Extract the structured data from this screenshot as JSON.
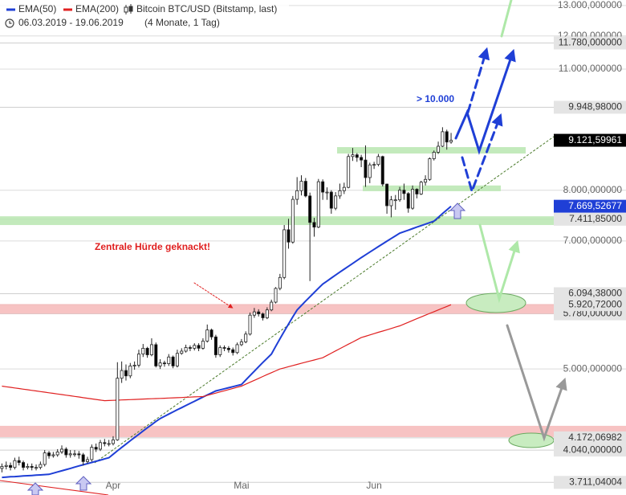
{
  "chart_data": {
    "type": "candlestick",
    "title": "Bitcoin BTC/USD (Bitstamp, last)",
    "subtitle": "06.03.2019 - 19.06.2019",
    "period": "(4 Monate, 1 Tag)",
    "log_scale": true,
    "grid": true,
    "color_up": "#ffffff",
    "color_down": "#000000",
    "categories": [
      null,
      null,
      null,
      null,
      null,
      null,
      null,
      null,
      null,
      null,
      null,
      null,
      null,
      null,
      null,
      null,
      null,
      null,
      null,
      null,
      null,
      null,
      null,
      null,
      null,
      null,
      "Apr",
      null,
      null,
      null,
      null,
      null,
      null,
      null,
      null,
      null,
      null,
      null,
      null,
      null,
      null,
      null,
      null,
      null,
      null,
      null,
      null,
      null,
      null,
      null,
      null,
      null,
      null,
      null,
      null,
      null,
      "Mai",
      null,
      null,
      null,
      null,
      null,
      null,
      null,
      null,
      null,
      null,
      null,
      null,
      null,
      null,
      null,
      null,
      null,
      null,
      null,
      null,
      null,
      null,
      null,
      null,
      null,
      null,
      null,
      null,
      null,
      null,
      "Jun",
      null,
      null,
      null,
      null,
      null,
      null,
      null,
      null,
      null,
      null,
      null,
      null,
      null,
      null,
      null,
      null,
      null,
      null
    ],
    "open": [
      3850,
      3870,
      3880,
      3860,
      3930,
      3910,
      3860,
      3870,
      3860,
      3860,
      3890,
      4010,
      3980,
      3990,
      4020,
      4050,
      3990,
      4000,
      4000,
      3990,
      3920,
      3940,
      4070,
      4050,
      4120,
      4110,
      4110,
      4150,
      4880,
      4980,
      4910,
      5040,
      5050,
      5200,
      5280,
      5190,
      5330,
      5040,
      5080,
      5070,
      5160,
      5040,
      5210,
      5240,
      5290,
      5280,
      5320,
      5280,
      5380,
      5540,
      5440,
      5190,
      5290,
      5280,
      5260,
      5220,
      5330,
      5370,
      5480,
      5760,
      5810,
      5780,
      5720,
      5840,
      5960,
      6180,
      6360,
      7210,
      6980,
      7810,
      7990,
      8190,
      7880,
      7350,
      7260,
      8180,
      7960,
      7960,
      7630,
      7880,
      7990,
      8060,
      8740,
      8780,
      8720,
      8660,
      8270,
      8550,
      8560,
      8740,
      8130,
      7680,
      7800,
      7800,
      8000,
      7930,
      7630,
      8020,
      7920,
      8170,
      8230,
      8690,
      8840,
      8980,
      9330,
      9080
    ],
    "high": [
      3900,
      3920,
      3910,
      3960,
      3970,
      3930,
      3900,
      3900,
      3890,
      3920,
      4040,
      4030,
      4020,
      4050,
      4090,
      4070,
      4040,
      4040,
      4030,
      4010,
      3970,
      4100,
      4110,
      4150,
      4160,
      4150,
      4190,
      5090,
      5100,
      5060,
      5080,
      5100,
      5260,
      5340,
      5300,
      5420,
      5360,
      5130,
      5110,
      5200,
      5180,
      5260,
      5280,
      5330,
      5320,
      5350,
      5350,
      5420,
      5620,
      5560,
      5470,
      5320,
      5320,
      5310,
      5290,
      5360,
      5410,
      5520,
      5800,
      5870,
      5850,
      5800,
      5880,
      6000,
      6200,
      6420,
      7300,
      7420,
      7880,
      8280,
      8320,
      8260,
      7950,
      7440,
      8240,
      8230,
      8060,
      8000,
      7960,
      8140,
      8160,
      8800,
      8940,
      8820,
      8780,
      9000,
      8600,
      8620,
      8800,
      8760,
      8140,
      7880,
      7900,
      8070,
      8140,
      7960,
      8100,
      8040,
      8200,
      8320,
      8720,
      8880,
      9090,
      9440,
      9380,
      9300
    ],
    "low": [
      3810,
      3840,
      3830,
      3840,
      3880,
      3830,
      3840,
      3830,
      3830,
      3840,
      3870,
      3950,
      3960,
      3970,
      4000,
      3960,
      3960,
      3970,
      3950,
      3880,
      3900,
      3920,
      4020,
      4030,
      4080,
      4080,
      4090,
      4140,
      4820,
      4850,
      4880,
      4990,
      5020,
      5160,
      5150,
      5170,
      5020,
      5000,
      5030,
      5040,
      5010,
      5020,
      5190,
      5220,
      5240,
      5250,
      5240,
      5260,
      5360,
      5400,
      5150,
      5160,
      5240,
      5220,
      5180,
      5200,
      5310,
      5350,
      5460,
      5720,
      5740,
      5680,
      5700,
      5820,
      5940,
      6150,
      6330,
      6860,
      6950,
      7700,
      7890,
      7850,
      6300,
      7080,
      7240,
      7800,
      7800,
      7520,
      7590,
      7820,
      7920,
      8040,
      8640,
      8620,
      8500,
      8070,
      8150,
      8460,
      8520,
      8080,
      7520,
      7450,
      7600,
      7760,
      7800,
      7540,
      7600,
      7830,
      7900,
      8100,
      8200,
      8650,
      8800,
      8960,
      8900,
      9040
    ],
    "close": [
      3870,
      3880,
      3860,
      3930,
      3910,
      3860,
      3870,
      3860,
      3860,
      3890,
      4010,
      3980,
      3990,
      4020,
      4050,
      3990,
      4000,
      4000,
      3990,
      3920,
      3940,
      4070,
      4050,
      4120,
      4110,
      4110,
      4150,
      4880,
      4980,
      4910,
      5040,
      5050,
      5200,
      5280,
      5190,
      5330,
      5040,
      5080,
      5070,
      5160,
      5040,
      5210,
      5240,
      5290,
      5280,
      5320,
      5280,
      5380,
      5540,
      5440,
      5190,
      5290,
      5280,
      5260,
      5220,
      5330,
      5370,
      5480,
      5760,
      5810,
      5780,
      5720,
      5840,
      5960,
      6180,
      6360,
      7210,
      6980,
      7810,
      7990,
      8190,
      7880,
      7350,
      7260,
      8180,
      7960,
      7960,
      7630,
      7880,
      7990,
      8060,
      8740,
      8780,
      8720,
      8660,
      8270,
      8550,
      8560,
      8740,
      8130,
      7680,
      7800,
      7800,
      8000,
      7930,
      7630,
      8020,
      7920,
      8170,
      8230,
      8690,
      8840,
      8980,
      9330,
      9080,
      9121.59961
    ],
    "series": [
      {
        "name": "EMA(50)",
        "color": "#1f3fd6",
        "values": [
          3760,
          3763,
          3766,
          3768,
          3771,
          3774,
          3777,
          3779,
          3782,
          3785,
          3788,
          3790,
          3802,
          3814,
          3826,
          3838,
          3850,
          3863,
          3875,
          3887,
          3899,
          3911,
          3923,
          3935,
          3947,
          3960,
          3996,
          4032,
          4068,
          4104,
          4140,
          4176,
          4212,
          4248,
          4284,
          4320,
          4356,
          4390,
          4415,
          4441,
          4466,
          4492,
          4517,
          4543,
          4568,
          4593,
          4619,
          4644,
          4670,
          4695,
          4720,
          4733,
          4747,
          4760,
          4773,
          4787,
          4800,
          4857,
          4914,
          4971,
          5029,
          5086,
          5143,
          5200,
          5307,
          5413,
          5520,
          5627,
          5733,
          5840,
          5908,
          5977,
          6045,
          6113,
          6182,
          6250,
          6300,
          6350,
          6400,
          6450,
          6500,
          6550,
          6600,
          6650,
          6700,
          6749,
          6799,
          6848,
          6898,
          6947,
          6997,
          7046,
          7096,
          7145,
          7174,
          7203,
          7231,
          7260,
          7289,
          7318,
          7346,
          7375,
          7449,
          7523,
          7596,
          7669.52677
        ]
      },
      {
        "name": "EMA(200)",
        "color": "#e02020",
        "values": [
          4780,
          4772,
          4765,
          4757,
          4750,
          4742,
          4735,
          4727,
          4720,
          4712,
          4705,
          4697,
          4690,
          4682,
          4675,
          4667,
          4660,
          4652,
          4645,
          4637,
          4630,
          4622,
          4615,
          4607,
          4600,
          4602,
          4604,
          4606,
          4609,
          4611,
          4613,
          4615,
          4617,
          4620,
          4622,
          4624,
          4626,
          4628,
          4630,
          4633,
          4635,
          4637,
          4639,
          4641,
          4643,
          4646,
          4648,
          4650,
          4664,
          4679,
          4693,
          4708,
          4722,
          4737,
          4751,
          4766,
          4780,
          4804,
          4829,
          4853,
          4878,
          4902,
          4927,
          4951,
          4976,
          5000,
          5015,
          5030,
          5045,
          5060,
          5075,
          5090,
          5105,
          5120,
          5135,
          5150,
          5181,
          5212,
          5243,
          5274,
          5306,
          5337,
          5368,
          5399,
          5430,
          5449,
          5468,
          5487,
          5506,
          5524,
          5543,
          5562,
          5581,
          5600,
          5627,
          5653,
          5680,
          5707,
          5733,
          5760,
          5787,
          5813,
          5840,
          5867,
          5893,
          5920.72
        ]
      }
    ],
    "ylim": [
      3590,
      13190
    ],
    "yticks": [
      {
        "value": 13000,
        "label": "13.000,000000"
      },
      {
        "value": 12000,
        "label": "12.000,000000"
      },
      {
        "value": 11000,
        "label": "11.000,000000"
      },
      {
        "value": 8000,
        "label": "8.000,000000"
      },
      {
        "value": 7000,
        "label": "7.000,000000"
      },
      {
        "value": 5000,
        "label": "5.000,000000"
      }
    ],
    "zones": [
      {
        "from": 8810,
        "to": 8960,
        "color": "#b8e6b0"
      },
      {
        "from": 7980,
        "to": 8100,
        "color": "#b8e6b0"
      },
      {
        "from": 7300,
        "to": 7470,
        "color": "#b8e6b0"
      },
      {
        "from": 5780,
        "to": 5930,
        "color": "#f6b8b8"
      },
      {
        "from": 4180,
        "to": 4306,
        "color": "#f6b8b8"
      }
    ],
    "price_labels": [
      {
        "value": 11780,
        "label": "11.780,000000",
        "color": "#e4e4e4",
        "text_color": "#333333"
      },
      {
        "value": 9948.98,
        "label": "9.948,98000",
        "color": "#e4e4e4",
        "text_color": "#333333"
      },
      {
        "value": 9121.59961,
        "label": "9.121,59961",
        "color": "#000000",
        "text_color": "#ffffff"
      },
      {
        "value": 7669.52677,
        "label": "7.669,52677",
        "color": "#1f3fd6",
        "text_color": "#ffffff"
      },
      {
        "value": 7411.85,
        "label": "7.411,85000",
        "color": "#e4e4e4",
        "text_color": "#333333"
      },
      {
        "value": 5780,
        "label": "5.780,000000",
        "color": "#e4e4e4",
        "text_color": "#333333"
      },
      {
        "value": 6094.38,
        "label": "6.094,38000",
        "color": "#e4e4e4",
        "text_color": "#333333"
      },
      {
        "value": 5920.72,
        "label": "5.920,72000",
        "color": "#e4e4e4",
        "text_color": "#333333"
      },
      {
        "value": 4172.06982,
        "label": "4.172,06982",
        "color": "#e4e4e4",
        "text_color": "#333333"
      },
      {
        "value": 4040,
        "label": "4.040,000000",
        "color": "#e4e4e4",
        "text_color": "#333333"
      },
      {
        "value": 3711.04004,
        "label": "3.711,04004",
        "color": "#e4e4e4",
        "text_color": "#333333"
      }
    ],
    "annotations": [
      "> 10.000",
      "Zentrale Hürde geknackt!"
    ]
  }
}
